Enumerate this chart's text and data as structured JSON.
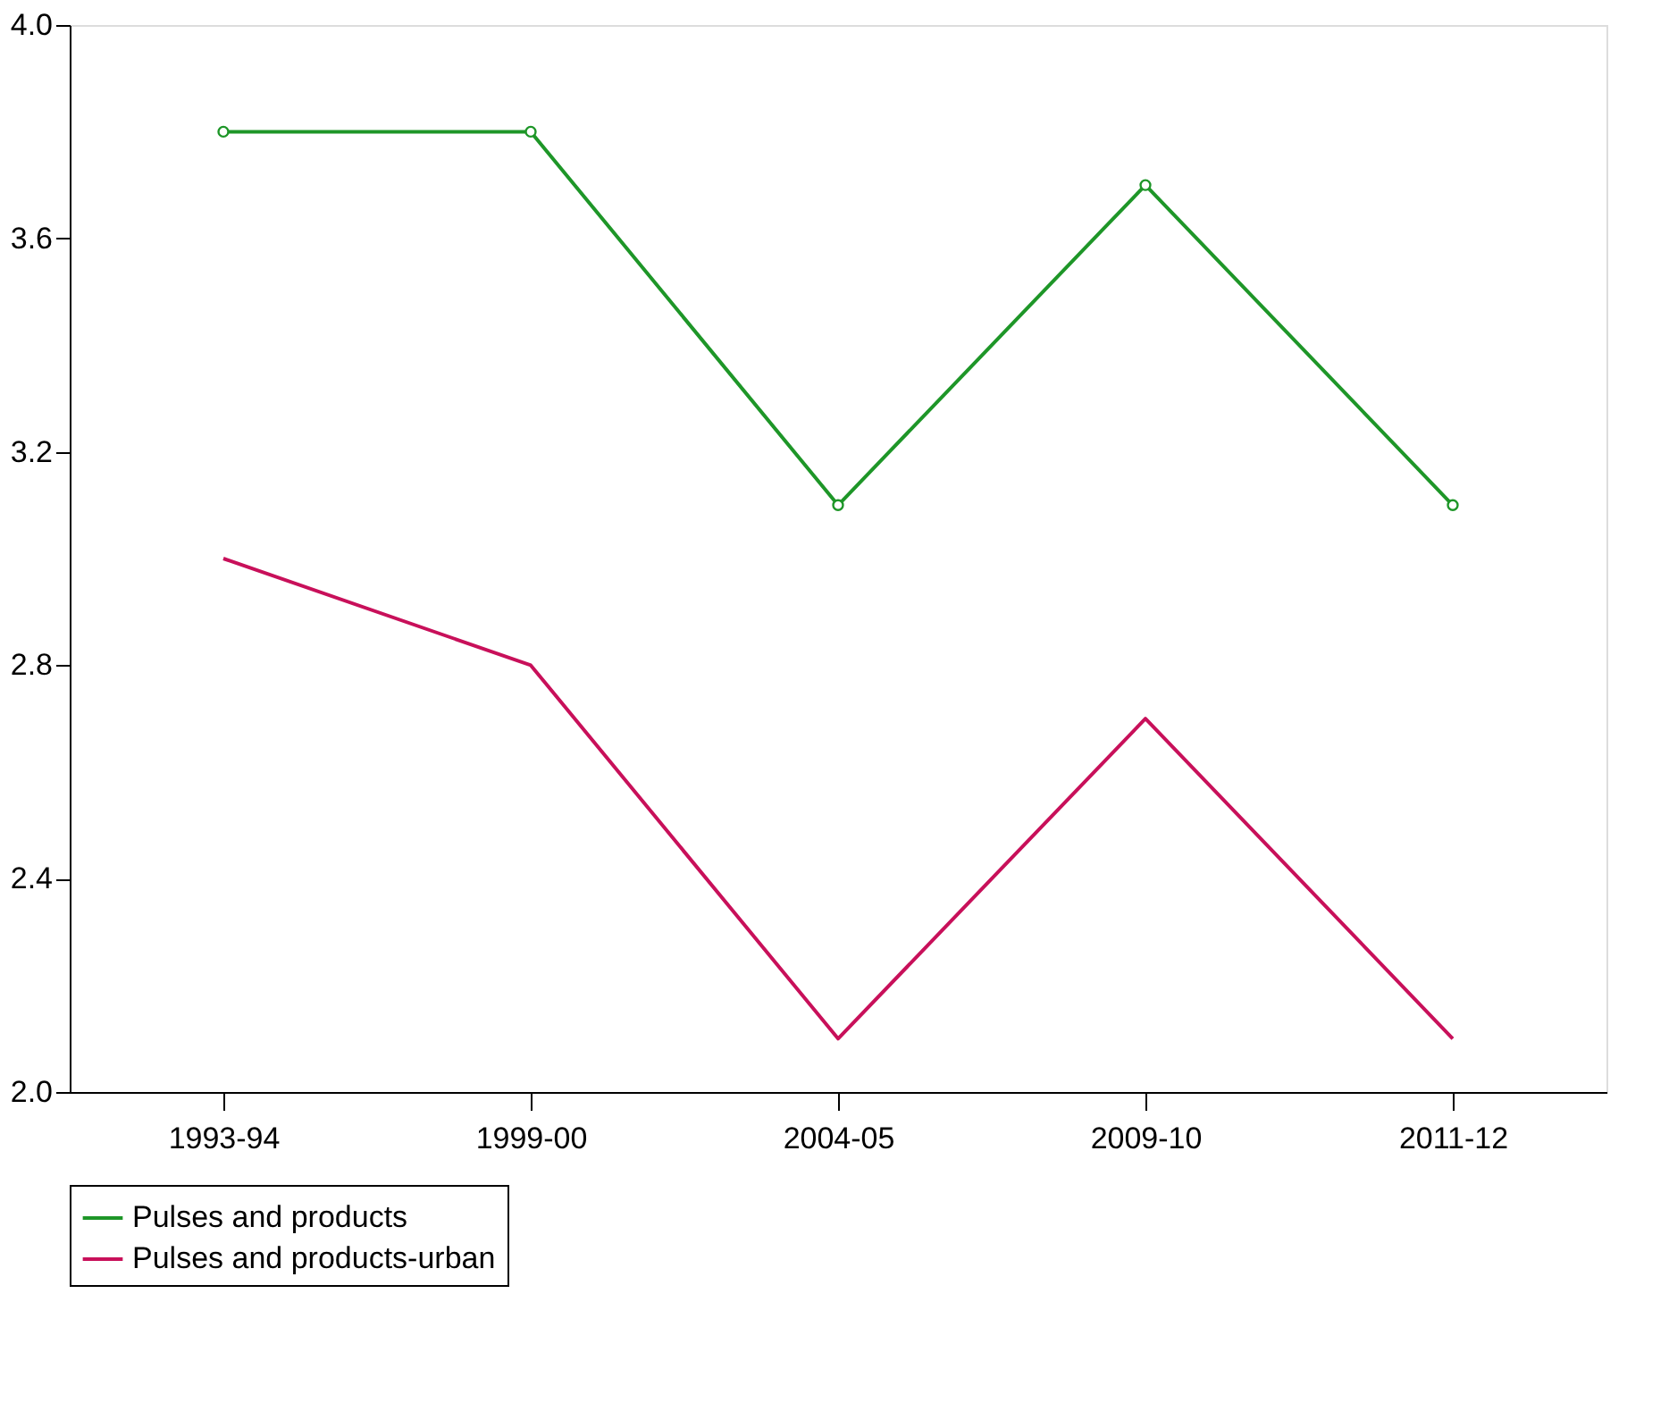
{
  "chart_data": {
    "type": "line",
    "categories": [
      "1993-94",
      "1999-00",
      "2004-05",
      "2009-10",
      "2011-12"
    ],
    "series": [
      {
        "name": "Pulses and products",
        "color": "#1e9628",
        "values": [
          3.8,
          3.8,
          3.1,
          3.7,
          3.1
        ],
        "marker": "circle"
      },
      {
        "name": "Pulses and products-urban",
        "color": "#c8105a",
        "values": [
          3.0,
          2.8,
          2.1,
          2.7,
          2.1
        ],
        "marker": "none"
      }
    ],
    "ylim": [
      2.0,
      4.0
    ],
    "yticks": [
      {
        "value": 2.0,
        "label": "2.0"
      },
      {
        "value": 2.4,
        "label": "2.4"
      },
      {
        "value": 2.8,
        "label": "2.8"
      },
      {
        "value": 3.2,
        "label": "3.2"
      },
      {
        "value": 3.6,
        "label": "3.6"
      },
      {
        "value": 4.0,
        "label": "4.0"
      }
    ],
    "grid": false,
    "legend": "bottom",
    "line_style": "solid"
  }
}
